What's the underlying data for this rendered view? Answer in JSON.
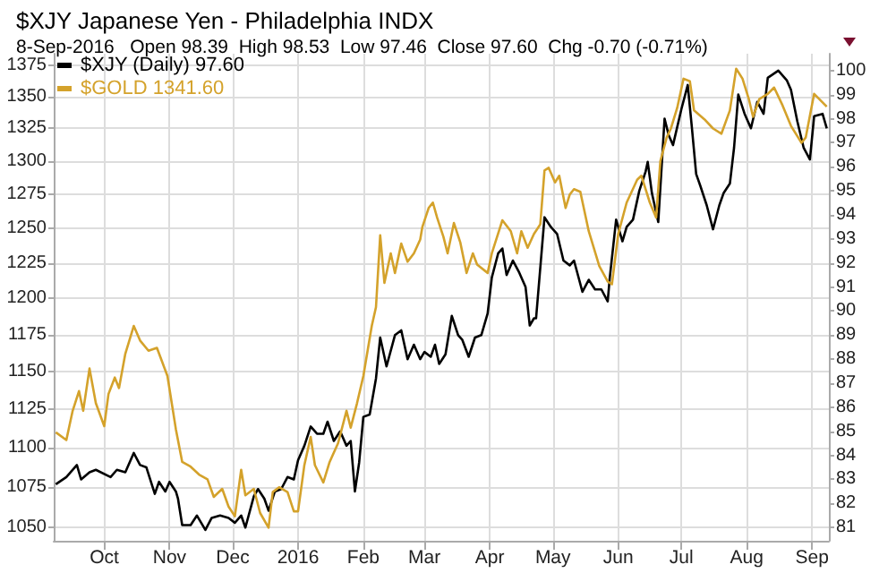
{
  "chart_data": {
    "type": "line",
    "title": "$XJY Japanese Yen - Philadelphia INDX",
    "subtitle": "8-Sep-2016   Open 98.39  High 98.53  Low 97.46  Close 97.60  Chg -0.70 (-0.71%)",
    "xlim": [
      "2015-09-07",
      "2016-09-09"
    ],
    "xticks": [
      {
        "value": "2015-10-01",
        "label": "Oct"
      },
      {
        "value": "2015-11-01",
        "label": "Nov"
      },
      {
        "value": "2015-12-01",
        "label": "Dec"
      },
      {
        "value": "2016-01-01",
        "label": "2016"
      },
      {
        "value": "2016-02-01",
        "label": "Feb"
      },
      {
        "value": "2016-03-01",
        "label": "Mar"
      },
      {
        "value": "2016-04-01",
        "label": "Apr"
      },
      {
        "value": "2016-05-01",
        "label": "May"
      },
      {
        "value": "2016-06-01",
        "label": "Jun"
      },
      {
        "value": "2016-07-01",
        "label": "Jul"
      },
      {
        "value": "2016-08-01",
        "label": "Aug"
      },
      {
        "value": "2016-09-01",
        "label": "Sep"
      }
    ],
    "ylim": [
      1042,
      1384
    ],
    "yticks": [
      1050,
      1075,
      1100,
      1125,
      1150,
      1175,
      1200,
      1225,
      1250,
      1275,
      1300,
      1325,
      1350,
      1375
    ],
    "y2lim": [
      80.45,
      100.7
    ],
    "y2ticks": [
      81,
      82,
      83,
      84,
      85,
      86,
      87,
      88,
      89,
      90,
      91,
      92,
      93,
      94,
      95,
      96,
      97,
      98,
      99,
      100
    ],
    "log": true,
    "grid": true,
    "legend": "top left",
    "series": [
      {
        "name": "$XJY (Daily) 97.60",
        "color": "#000000",
        "axis": "y2",
        "x": [
          "2015-09-08",
          "2015-09-13",
          "2015-09-18",
          "2015-09-20",
          "2015-09-24",
          "2015-09-27",
          "2015-10-04",
          "2015-10-07",
          "2015-10-11",
          "2015-10-15",
          "2015-10-18",
          "2015-10-21",
          "2015-10-25",
          "2015-10-27",
          "2015-10-30",
          "2015-11-01",
          "2015-11-04",
          "2015-11-05",
          "2015-11-07",
          "2015-11-11",
          "2015-11-14",
          "2015-11-18",
          "2015-11-21",
          "2015-11-25",
          "2015-11-29",
          "2015-12-02",
          "2015-12-05",
          "2015-12-07",
          "2015-12-11",
          "2015-12-13",
          "2015-12-16",
          "2015-12-18",
          "2015-12-21",
          "2015-12-24",
          "2015-12-27",
          "2015-12-30",
          "2016-01-01",
          "2016-01-04",
          "2016-01-07",
          "2016-01-10",
          "2016-01-13",
          "2016-01-15",
          "2016-01-18",
          "2016-01-21",
          "2016-01-24",
          "2016-01-26",
          "2016-01-28",
          "2016-01-30",
          "2016-02-01",
          "2016-02-04",
          "2016-02-07",
          "2016-02-09",
          "2016-02-12",
          "2016-02-16",
          "2016-02-19",
          "2016-02-22",
          "2016-02-25",
          "2016-02-28",
          "2016-03-01",
          "2016-03-04",
          "2016-03-06",
          "2016-03-08",
          "2016-03-11",
          "2016-03-14",
          "2016-03-17",
          "2016-03-19",
          "2016-03-22",
          "2016-03-25",
          "2016-03-28",
          "2016-03-31",
          "2016-04-02",
          "2016-04-05",
          "2016-04-07",
          "2016-04-09",
          "2016-04-12",
          "2016-04-15",
          "2016-04-18",
          "2016-04-20",
          "2016-04-22",
          "2016-04-23",
          "2016-04-27",
          "2016-04-30",
          "2016-05-03",
          "2016-05-06",
          "2016-05-09",
          "2016-05-11",
          "2016-05-15",
          "2016-05-18",
          "2016-05-21",
          "2016-05-24",
          "2016-05-27",
          "2016-05-28",
          "2016-05-31",
          "2016-06-03",
          "2016-06-05",
          "2016-06-08",
          "2016-06-11",
          "2016-06-14",
          "2016-06-15",
          "2016-06-17",
          "2016-06-20",
          "2016-06-23",
          "2016-06-25",
          "2016-06-27",
          "2016-07-01",
          "2016-07-04",
          "2016-07-06",
          "2016-07-08",
          "2016-07-10",
          "2016-07-13",
          "2016-07-16",
          "2016-07-19",
          "2016-07-21",
          "2016-07-24",
          "2016-07-26",
          "2016-07-28",
          "2016-07-31",
          "2016-08-03",
          "2016-08-06",
          "2016-08-09",
          "2016-08-11",
          "2016-08-16",
          "2016-08-20",
          "2016-08-22",
          "2016-08-25",
          "2016-08-28",
          "2016-08-31",
          "2016-09-02",
          "2016-09-06",
          "2016-09-08"
        ],
        "values": [
          82.8,
          83.1,
          83.6,
          83.0,
          83.3,
          83.4,
          83.1,
          83.4,
          83.3,
          84.1,
          83.6,
          83.5,
          82.4,
          82.9,
          82.5,
          82.9,
          82.5,
          82.2,
          81.1,
          81.1,
          81.5,
          80.9,
          81.4,
          81.5,
          81.4,
          81.2,
          81.5,
          81.0,
          82.3,
          82.6,
          82.2,
          81.7,
          82.5,
          82.6,
          83.1,
          83.0,
          83.8,
          84.4,
          85.2,
          84.9,
          84.9,
          85.4,
          84.6,
          85.0,
          84.4,
          84.6,
          82.5,
          83.7,
          85.6,
          85.7,
          87.2,
          88.9,
          87.7,
          89.0,
          89.2,
          88.0,
          88.6,
          88.0,
          88.3,
          88.1,
          88.6,
          87.8,
          88.2,
          89.8,
          89.0,
          88.8,
          88.1,
          88.9,
          89.0,
          89.9,
          91.4,
          92.4,
          92.6,
          91.5,
          92.1,
          91.6,
          91.0,
          89.4,
          89.7,
          89.7,
          93.9,
          93.5,
          93.2,
          92.1,
          91.9,
          92.1,
          90.8,
          91.3,
          90.9,
          90.9,
          90.4,
          91.4,
          93.8,
          92.9,
          93.5,
          93.8,
          95.0,
          95.8,
          96.2,
          94.9,
          93.7,
          98.0,
          97.3,
          96.9,
          98.4,
          99.4,
          97.6,
          95.7,
          95.2,
          94.4,
          93.4,
          94.4,
          94.9,
          95.3,
          96.8,
          99.0,
          98.2,
          97.6,
          98.7,
          98.2,
          99.7,
          100.0,
          99.6,
          99.2,
          97.9,
          96.8,
          96.3,
          98.1,
          98.2,
          97.6
        ]
      },
      {
        "name": "$GOLD 1341.60",
        "color": "#d4a22b",
        "axis": "y",
        "x": [
          "2015-09-08",
          "2015-09-13",
          "2015-09-16",
          "2015-09-19",
          "2015-09-21",
          "2015-09-24",
          "2015-09-27",
          "2015-10-01",
          "2015-10-03",
          "2015-10-06",
          "2015-10-08",
          "2015-10-11",
          "2015-10-15",
          "2015-10-18",
          "2015-10-22",
          "2015-10-26",
          "2015-10-31",
          "2015-11-04",
          "2015-11-07",
          "2015-11-11",
          "2015-11-15",
          "2015-11-19",
          "2015-11-22",
          "2015-11-26",
          "2015-11-29",
          "2015-12-02",
          "2015-12-05",
          "2015-12-07",
          "2015-12-11",
          "2015-12-14",
          "2015-12-18",
          "2015-12-20",
          "2015-12-23",
          "2015-12-27",
          "2015-12-30",
          "2016-01-01",
          "2016-01-04",
          "2016-01-07",
          "2016-01-09",
          "2016-01-13",
          "2016-01-16",
          "2016-01-20",
          "2016-01-24",
          "2016-01-26",
          "2016-01-29",
          "2016-02-01",
          "2016-02-05",
          "2016-02-07",
          "2016-02-09",
          "2016-02-11",
          "2016-02-14",
          "2016-02-16",
          "2016-02-19",
          "2016-02-22",
          "2016-02-25",
          "2016-02-28",
          "2016-02-29",
          "2016-03-03",
          "2016-03-05",
          "2016-03-07",
          "2016-03-10",
          "2016-03-12",
          "2016-03-15",
          "2016-03-18",
          "2016-03-21",
          "2016-03-24",
          "2016-03-26",
          "2016-03-31",
          "2016-04-02",
          "2016-04-07",
          "2016-04-11",
          "2016-04-14",
          "2016-04-16",
          "2016-04-19",
          "2016-04-22",
          "2016-04-25",
          "2016-04-27",
          "2016-04-29",
          "2016-05-02",
          "2016-05-04",
          "2016-05-07",
          "2016-05-09",
          "2016-05-11",
          "2016-05-14",
          "2016-05-18",
          "2016-05-23",
          "2016-05-27",
          "2016-05-29",
          "2016-06-01",
          "2016-06-05",
          "2016-06-10",
          "2016-06-12",
          "2016-06-16",
          "2016-06-19",
          "2016-06-21",
          "2016-06-24",
          "2016-06-26",
          "2016-06-29",
          "2016-07-02",
          "2016-07-05",
          "2016-07-07",
          "2016-07-12",
          "2016-07-16",
          "2016-07-20",
          "2016-07-24",
          "2016-07-27",
          "2016-07-30",
          "2016-08-02",
          "2016-08-04",
          "2016-08-07",
          "2016-08-11",
          "2016-08-14",
          "2016-08-18",
          "2016-08-22",
          "2016-08-27",
          "2016-08-29",
          "2016-09-02",
          "2016-09-08"
        ],
        "values": [
          1110,
          1105,
          1124,
          1137,
          1124,
          1152,
          1129,
          1114,
          1135,
          1146,
          1139,
          1162,
          1181,
          1171,
          1164,
          1166,
          1147,
          1112,
          1091,
          1088,
          1083,
          1080,
          1069,
          1074,
          1063,
          1057,
          1086,
          1070,
          1074,
          1059,
          1050,
          1072,
          1075,
          1072,
          1060,
          1060,
          1089,
          1107,
          1089,
          1078,
          1091,
          1103,
          1124,
          1113,
          1129,
          1147,
          1181,
          1194,
          1245,
          1211,
          1232,
          1218,
          1239,
          1226,
          1232,
          1242,
          1251,
          1265,
          1269,
          1258,
          1244,
          1232,
          1254,
          1240,
          1218,
          1232,
          1224,
          1218,
          1232,
          1256,
          1248,
          1232,
          1248,
          1236,
          1246,
          1253,
          1293,
          1295,
          1284,
          1289,
          1265,
          1275,
          1279,
          1277,
          1248,
          1223,
          1212,
          1210,
          1246,
          1269,
          1286,
          1289,
          1269,
          1258,
          1300,
          1318,
          1325,
          1341,
          1364,
          1362,
          1339,
          1332,
          1325,
          1321,
          1339,
          1372,
          1364,
          1348,
          1334,
          1348,
          1352,
          1357,
          1343,
          1327,
          1314,
          1318,
          1352,
          1342
        ]
      }
    ]
  }
}
